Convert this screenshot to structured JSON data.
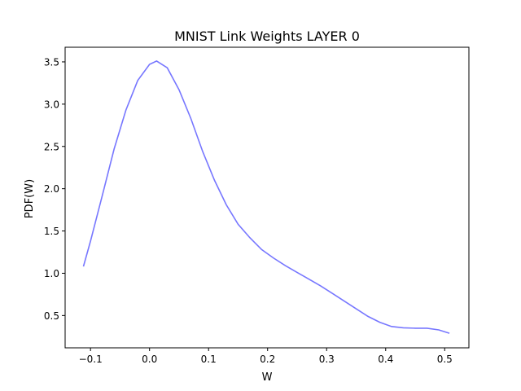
{
  "chart_data": {
    "type": "line",
    "title": "MNIST Link Weights LAYER 0",
    "xlabel": "W",
    "ylabel": "PDF(W)",
    "xlim": [
      -0.143,
      0.541
    ],
    "ylim": [
      0.118,
      3.673
    ],
    "grid": false,
    "legend": "none",
    "x_ticks": [
      {
        "value": -0.1,
        "label": "−0.1"
      },
      {
        "value": 0.0,
        "label": "0.0"
      },
      {
        "value": 0.1,
        "label": "0.1"
      },
      {
        "value": 0.2,
        "label": "0.2"
      },
      {
        "value": 0.3,
        "label": "0.3"
      },
      {
        "value": 0.4,
        "label": "0.4"
      },
      {
        "value": 0.5,
        "label": "0.5"
      }
    ],
    "y_ticks": [
      {
        "value": 0.5,
        "label": "0.5"
      },
      {
        "value": 1.0,
        "label": "1.0"
      },
      {
        "value": 1.5,
        "label": "1.5"
      },
      {
        "value": 2.0,
        "label": "2.0"
      },
      {
        "value": 2.5,
        "label": "2.5"
      },
      {
        "value": 3.0,
        "label": "3.0"
      },
      {
        "value": 3.5,
        "label": "3.5"
      }
    ],
    "series": [
      {
        "color": "#7777ff",
        "x": [
          -0.112,
          -0.1,
          -0.08,
          -0.06,
          -0.04,
          -0.02,
          0.0,
          0.012,
          0.03,
          0.05,
          0.07,
          0.09,
          0.11,
          0.13,
          0.15,
          0.17,
          0.19,
          0.21,
          0.23,
          0.25,
          0.27,
          0.29,
          0.31,
          0.33,
          0.35,
          0.37,
          0.39,
          0.41,
          0.43,
          0.45,
          0.47,
          0.49,
          0.508
        ],
        "y": [
          1.08,
          1.38,
          1.92,
          2.47,
          2.93,
          3.28,
          3.47,
          3.51,
          3.43,
          3.17,
          2.83,
          2.44,
          2.1,
          1.81,
          1.58,
          1.42,
          1.28,
          1.18,
          1.09,
          1.01,
          0.93,
          0.85,
          0.76,
          0.67,
          0.58,
          0.49,
          0.42,
          0.37,
          0.355,
          0.35,
          0.35,
          0.33,
          0.29
        ]
      }
    ]
  }
}
